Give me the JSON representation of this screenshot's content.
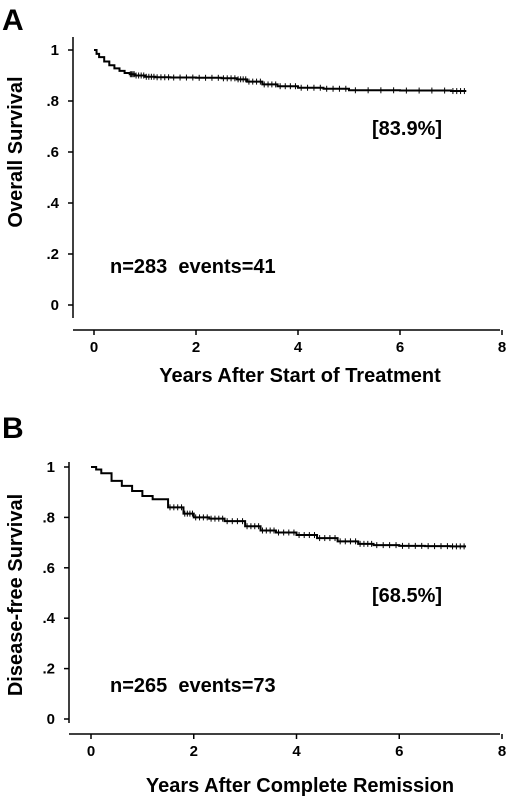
{
  "chart_data": [
    {
      "type": "line",
      "panel_label": "A",
      "xlabel": "Years After Start of Treatment",
      "ylabel": "Overall Survival",
      "xlim": [
        0,
        8
      ],
      "ylim": [
        0,
        1
      ],
      "x_ticks": [
        0,
        2,
        4,
        6,
        8
      ],
      "x_tick_labels": [
        "0",
        "2",
        "4",
        "6",
        "8"
      ],
      "y_ticks": [
        0,
        0.2,
        0.4,
        0.6,
        0.8,
        1
      ],
      "y_tick_labels": [
        "0",
        ".2",
        ".4",
        ".6",
        ".8",
        "1"
      ],
      "grid": false,
      "series": [
        {
          "x": [
            0,
            0.05,
            0.1,
            0.2,
            0.3,
            0.4,
            0.5,
            0.6,
            0.7,
            0.8,
            1.0,
            1.2,
            1.5,
            2.0,
            2.5,
            2.8,
            3.0,
            3.3,
            3.6,
            4.0,
            4.5,
            5.0,
            6.0,
            7.0,
            7.3
          ],
          "y": [
            1.0,
            0.985,
            0.972,
            0.955,
            0.94,
            0.928,
            0.918,
            0.91,
            0.905,
            0.9,
            0.895,
            0.893,
            0.892,
            0.891,
            0.889,
            0.885,
            0.876,
            0.865,
            0.858,
            0.852,
            0.848,
            0.842,
            0.841,
            0.839,
            0.839
          ]
        }
      ],
      "annotations": [
        "[83.9%]",
        "n=283  events=41"
      ]
    },
    {
      "type": "line",
      "panel_label": "B",
      "xlabel": "Years After Complete Remission",
      "ylabel": "Disease-free Survival",
      "xlim": [
        0,
        8
      ],
      "ylim": [
        0,
        1
      ],
      "x_ticks": [
        0,
        2,
        4,
        6,
        8
      ],
      "x_tick_labels": [
        "0",
        "2",
        "4",
        "6",
        "8"
      ],
      "y_ticks": [
        0,
        0.2,
        0.4,
        0.6,
        0.8,
        1
      ],
      "y_tick_labels": [
        "0",
        ".2",
        ".4",
        ".6",
        ".8",
        "1"
      ],
      "grid": false,
      "series": [
        {
          "x": [
            0,
            0.1,
            0.2,
            0.4,
            0.6,
            0.8,
            1.0,
            1.2,
            1.5,
            1.8,
            2.0,
            2.3,
            2.6,
            3.0,
            3.3,
            3.6,
            4.0,
            4.4,
            4.8,
            5.2,
            5.5,
            6.0,
            6.5,
            7.0,
            7.3
          ],
          "y": [
            1.0,
            0.99,
            0.975,
            0.945,
            0.925,
            0.905,
            0.885,
            0.872,
            0.84,
            0.815,
            0.8,
            0.795,
            0.785,
            0.765,
            0.748,
            0.74,
            0.73,
            0.718,
            0.705,
            0.695,
            0.69,
            0.687,
            0.686,
            0.685,
            0.685
          ]
        }
      ],
      "annotations": [
        "[68.5%]",
        "n=265  events=73"
      ]
    }
  ]
}
